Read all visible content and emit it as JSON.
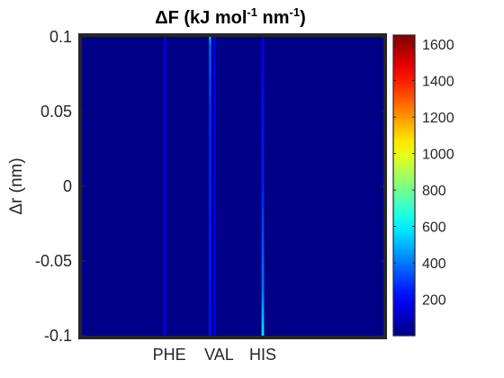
{
  "chart_data": {
    "type": "heatmap",
    "title": {
      "symbol": "ΔF",
      "part1": " (kJ mol",
      "sup1": "-1",
      "part2": " nm",
      "sup2": "-1",
      "part3": ")"
    },
    "ylabel": "Δr (nm)",
    "xlabel": "",
    "ylim": [
      -0.1,
      0.1
    ],
    "yticks": [
      {
        "value": 0.1,
        "label": "0.1"
      },
      {
        "value": 0.05,
        "label": "0.05"
      },
      {
        "value": 0,
        "label": "0"
      },
      {
        "value": -0.05,
        "label": "-0.05"
      },
      {
        "value": -0.1,
        "label": "-0.1"
      }
    ],
    "xticks": [
      {
        "value": 0.29,
        "label": "PHE"
      },
      {
        "value": 0.455,
        "label": "VAL"
      },
      {
        "value": 0.6,
        "label": "HIS"
      }
    ],
    "colorbar": {
      "min": 0,
      "max": 1650,
      "colormap": "jet",
      "ticks": [
        {
          "value": 200,
          "label": "200"
        },
        {
          "value": 400,
          "label": "400"
        },
        {
          "value": 600,
          "label": "600"
        },
        {
          "value": 800,
          "label": "800"
        },
        {
          "value": 1000,
          "label": "1000"
        },
        {
          "value": 1200,
          "label": "1200"
        },
        {
          "value": 1400,
          "label": "1400"
        },
        {
          "value": 1600,
          "label": "1600"
        }
      ]
    },
    "background_value": 10,
    "streaks": [
      {
        "x": 0.275,
        "y_profile": [
          [
            -0.1,
            160
          ],
          [
            0.1,
            160
          ]
        ]
      },
      {
        "x": 0.425,
        "y_profile": [
          [
            -0.1,
            230
          ],
          [
            0.05,
            280
          ],
          [
            0.095,
            380
          ],
          [
            0.1,
            520
          ]
        ]
      },
      {
        "x": 0.44,
        "y_profile": [
          [
            -0.1,
            180
          ],
          [
            0.1,
            190
          ]
        ]
      },
      {
        "x": 0.6,
        "y_profile": [
          [
            -0.1,
            640
          ],
          [
            -0.09,
            560
          ],
          [
            -0.07,
            420
          ],
          [
            0,
            260
          ],
          [
            0.1,
            200
          ]
        ]
      }
    ]
  }
}
